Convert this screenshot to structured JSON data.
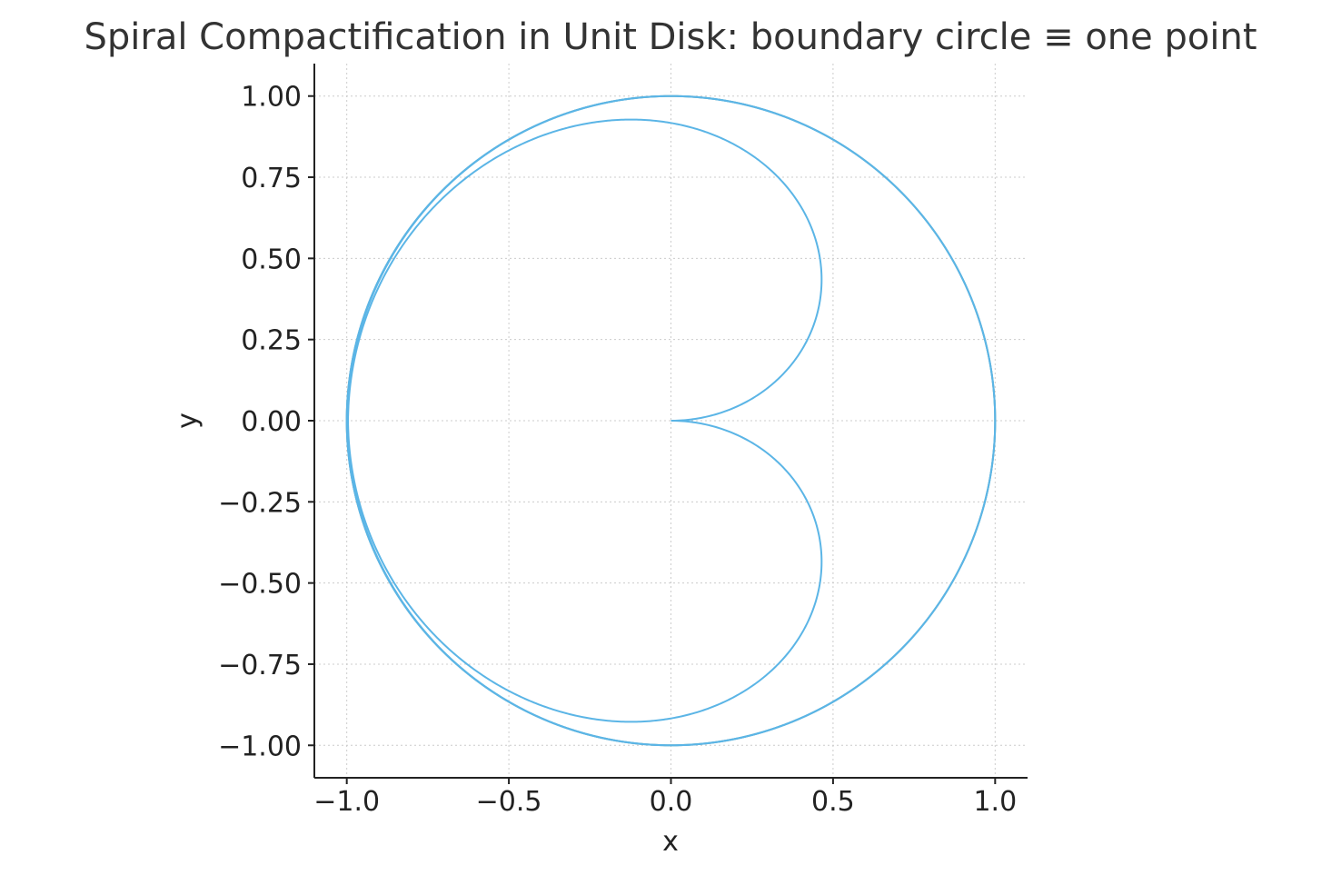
{
  "chart_data": {
    "type": "line",
    "title": "Spiral Compactification in Unit Disk: boundary circle ≡ one point",
    "xlabel": "x",
    "ylabel": "y",
    "xlim": [
      -1.1,
      1.1
    ],
    "ylim": [
      -1.1,
      1.1
    ],
    "xticks": [
      -1.0,
      -0.5,
      0.0,
      0.5,
      1.0
    ],
    "xtick_labels": [
      "−1.0",
      "−0.5",
      "0.0",
      "0.5",
      "1.0"
    ],
    "yticks": [
      1.0,
      0.75,
      0.5,
      0.25,
      0.0,
      -0.25,
      -0.5,
      -0.75,
      -1.0
    ],
    "ytick_labels": [
      "1.00",
      "0.75",
      "0.50",
      "0.25",
      "0.00",
      "−0.25",
      "−0.50",
      "−0.75",
      "−1.00"
    ],
    "grid": true,
    "aspect": "equal",
    "series": [
      {
        "curve": "spiral",
        "parametric": "r(t) = tanh(t), theta(t) = t, t from 0 to 12*pi (mirrored for the lower half)",
        "t_max": 37.7,
        "color": "#5bb5e6"
      },
      {
        "curve": "boundary-circle",
        "parametric": "unit circle r = 1",
        "radius": 1.0,
        "color": "#c8b870"
      }
    ]
  }
}
